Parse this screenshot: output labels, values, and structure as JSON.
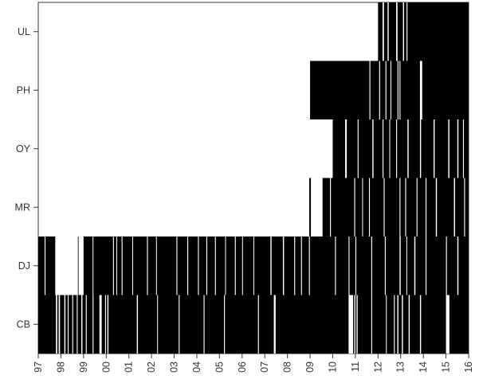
{
  "chart_data": {
    "type": "heatmap",
    "title": "",
    "xlabel": "",
    "ylabel": "",
    "xlim": [
      97,
      116
    ],
    "x_ticks": [
      {
        "value": 97,
        "label": "97"
      },
      {
        "value": 98,
        "label": "98"
      },
      {
        "value": 99,
        "label": "99"
      },
      {
        "value": 100,
        "label": "00"
      },
      {
        "value": 101,
        "label": "01"
      },
      {
        "value": 102,
        "label": "02"
      },
      {
        "value": 103,
        "label": "03"
      },
      {
        "value": 104,
        "label": "04"
      },
      {
        "value": 105,
        "label": "05"
      },
      {
        "value": 106,
        "label": "06"
      },
      {
        "value": 107,
        "label": "07"
      },
      {
        "value": 108,
        "label": "08"
      },
      {
        "value": 109,
        "label": "09"
      },
      {
        "value": 110,
        "label": "10"
      },
      {
        "value": 111,
        "label": "11"
      },
      {
        "value": 112,
        "label": "12"
      },
      {
        "value": 113,
        "label": "13"
      },
      {
        "value": 114,
        "label": "14"
      },
      {
        "value": 115,
        "label": "15"
      },
      {
        "value": 116,
        "label": "16"
      }
    ],
    "row_labels": [
      "UL",
      "PH",
      "OY",
      "MR",
      "DJ",
      "CB"
    ],
    "fill_color": "#000000",
    "background_color": "#ffffff",
    "rows": [
      {
        "label": "UL",
        "start": 112.0,
        "end": 116.0,
        "gaps": [
          [
            112.2,
            112.26
          ],
          [
            112.42,
            112.47
          ],
          [
            112.8,
            112.86
          ],
          [
            113.1,
            113.15
          ],
          [
            113.26,
            113.3
          ]
        ]
      },
      {
        "label": "PH",
        "start": 109.0,
        "end": 116.0,
        "gaps": [
          [
            111.62,
            111.66
          ],
          [
            112.05,
            112.09
          ],
          [
            112.33,
            112.37
          ],
          [
            112.55,
            112.58
          ],
          [
            112.86,
            112.9
          ],
          [
            112.95,
            112.99
          ],
          [
            113.85,
            113.95
          ]
        ]
      },
      {
        "label": "OY",
        "start": 110.0,
        "end": 116.0,
        "gaps": [
          [
            110.55,
            110.62
          ],
          [
            111.1,
            111.14
          ],
          [
            111.75,
            111.8
          ],
          [
            112.2,
            112.24
          ],
          [
            112.5,
            112.53
          ],
          [
            112.8,
            112.84
          ],
          [
            113.3,
            113.35
          ],
          [
            113.85,
            113.9
          ],
          [
            114.45,
            114.5
          ],
          [
            115.1,
            115.15
          ],
          [
            115.5,
            115.55
          ],
          [
            115.75,
            115.79
          ]
        ]
      },
      {
        "label": "MR",
        "start": 109.55,
        "end": 116.0,
        "lines": [
          109.0
        ],
        "gaps": [
          [
            109.88,
            109.92
          ],
          [
            110.95,
            110.99
          ],
          [
            111.3,
            111.33
          ],
          [
            111.6,
            111.64
          ],
          [
            112.25,
            112.29
          ],
          [
            112.95,
            112.99
          ],
          [
            113.2,
            113.24
          ],
          [
            113.7,
            113.74
          ],
          [
            114.1,
            114.14
          ],
          [
            114.55,
            114.6
          ],
          [
            115.35,
            115.4
          ],
          [
            115.8,
            115.84
          ]
        ]
      },
      {
        "label": "DJ",
        "start": 97.0,
        "end": 116.0,
        "gaps": [
          [
            97.28,
            97.32
          ],
          [
            97.75,
            98.75
          ],
          [
            98.78,
            99.0
          ],
          [
            99.4,
            99.43
          ],
          [
            100.3,
            100.34
          ],
          [
            100.45,
            100.48
          ],
          [
            100.68,
            100.72
          ],
          [
            101.15,
            101.18
          ],
          [
            101.8,
            101.84
          ],
          [
            102.2,
            102.23
          ],
          [
            103.1,
            103.14
          ],
          [
            103.58,
            103.62
          ],
          [
            104.05,
            104.09
          ],
          [
            104.42,
            104.46
          ],
          [
            104.8,
            104.84
          ],
          [
            105.25,
            105.28
          ],
          [
            105.68,
            105.72
          ],
          [
            106.0,
            106.03
          ],
          [
            106.5,
            106.53
          ],
          [
            107.25,
            107.3
          ],
          [
            107.8,
            107.85
          ],
          [
            108.3,
            108.34
          ],
          [
            108.6,
            108.64
          ],
          [
            108.95,
            108.99
          ],
          [
            110.1,
            110.14
          ],
          [
            110.7,
            110.74
          ],
          [
            111.0,
            111.04
          ],
          [
            111.7,
            111.74
          ],
          [
            112.3,
            112.34
          ],
          [
            112.95,
            113.0
          ],
          [
            113.25,
            113.28
          ],
          [
            113.6,
            113.65
          ],
          [
            114.1,
            114.14
          ],
          [
            115.0,
            115.04
          ],
          [
            115.5,
            115.55
          ]
        ]
      },
      {
        "label": "CB",
        "start": 97.0,
        "end": 116.0,
        "gaps": [
          [
            97.78,
            97.84
          ],
          [
            97.9,
            97.96
          ],
          [
            98.15,
            98.2
          ],
          [
            98.3,
            98.34
          ],
          [
            98.5,
            98.54
          ],
          [
            98.7,
            98.74
          ],
          [
            98.9,
            98.95
          ],
          [
            99.1,
            99.14
          ],
          [
            99.4,
            99.44
          ],
          [
            99.7,
            99.8
          ],
          [
            99.95,
            99.99
          ],
          [
            100.05,
            100.1
          ],
          [
            101.35,
            101.4
          ],
          [
            102.25,
            102.28
          ],
          [
            103.2,
            103.24
          ],
          [
            104.3,
            104.34
          ],
          [
            105.2,
            105.24
          ],
          [
            106.7,
            106.74
          ],
          [
            107.4,
            107.48
          ],
          [
            110.7,
            110.9
          ],
          [
            110.95,
            111.0
          ],
          [
            111.05,
            111.1
          ],
          [
            111.7,
            111.74
          ],
          [
            112.35,
            112.38
          ],
          [
            112.7,
            112.74
          ],
          [
            112.85,
            112.9
          ],
          [
            113.05,
            113.1
          ],
          [
            113.35,
            113.4
          ],
          [
            113.85,
            113.9
          ],
          [
            115.0,
            115.15
          ]
        ]
      }
    ]
  }
}
